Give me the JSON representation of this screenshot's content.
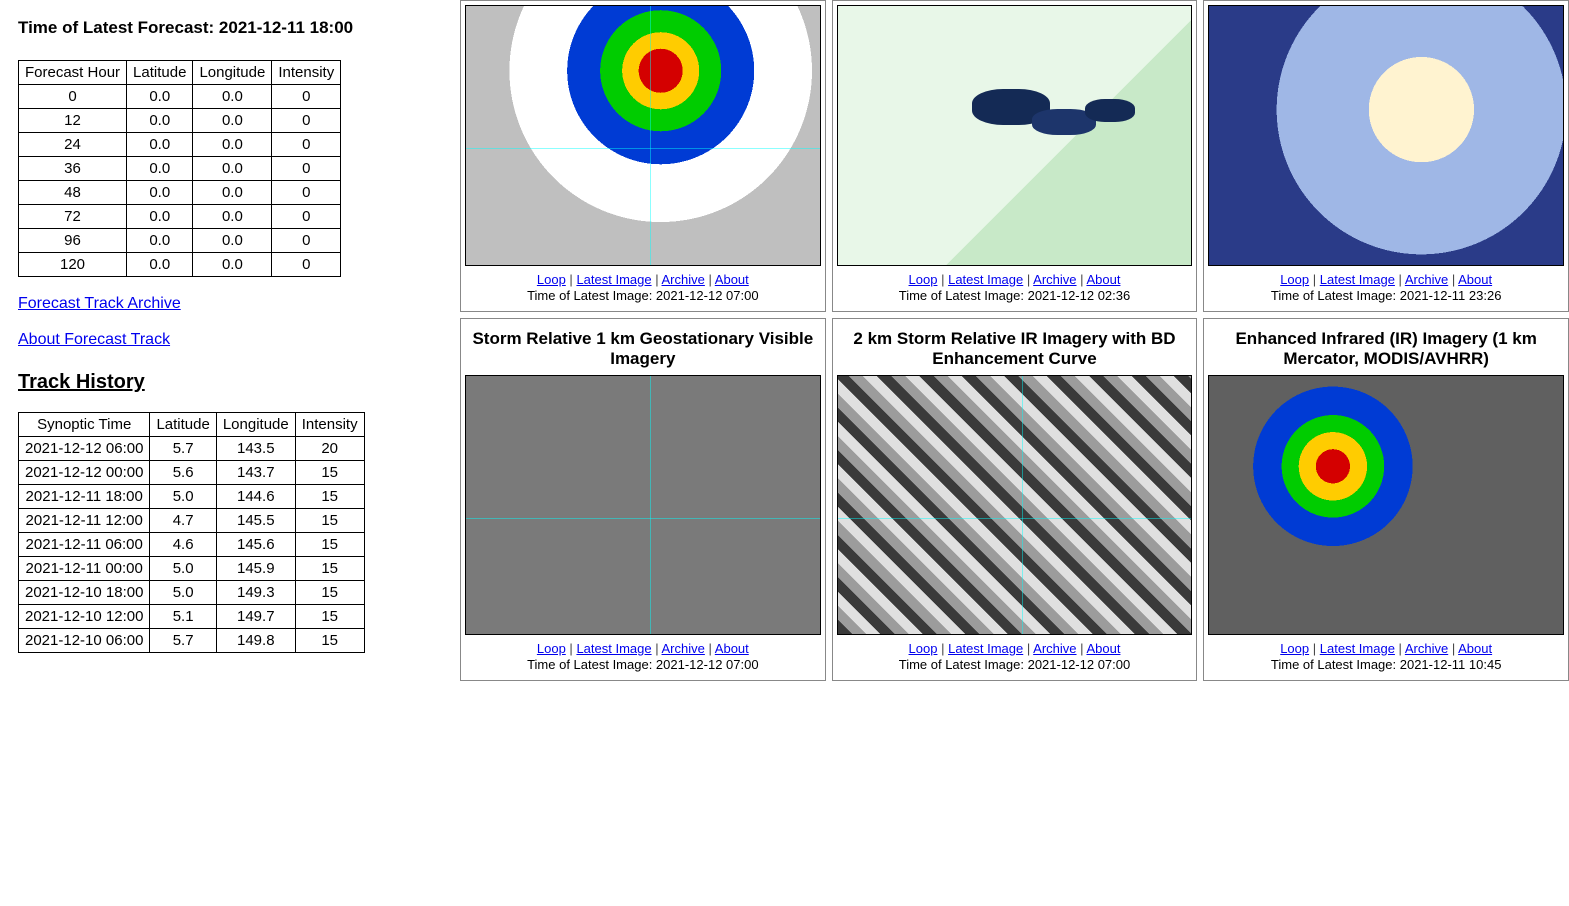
{
  "forecast": {
    "time_label": "Time of Latest Forecast: 2021-12-11 18:00",
    "columns": [
      "Forecast Hour",
      "Latitude",
      "Longitude",
      "Intensity"
    ],
    "rows": [
      [
        "0",
        "0.0",
        "0.0",
        "0"
      ],
      [
        "12",
        "0.0",
        "0.0",
        "0"
      ],
      [
        "24",
        "0.0",
        "0.0",
        "0"
      ],
      [
        "36",
        "0.0",
        "0.0",
        "0"
      ],
      [
        "48",
        "0.0",
        "0.0",
        "0"
      ],
      [
        "72",
        "0.0",
        "0.0",
        "0"
      ],
      [
        "96",
        "0.0",
        "0.0",
        "0"
      ],
      [
        "120",
        "0.0",
        "0.0",
        "0"
      ]
    ]
  },
  "links": {
    "archive": "Forecast Track Archive",
    "about": "About Forecast Track"
  },
  "track_history": {
    "heading": "Track History",
    "columns": [
      "Synoptic Time",
      "Latitude",
      "Longitude",
      "Intensity"
    ],
    "rows": [
      [
        "2021-12-12 06:00",
        "5.7",
        "143.5",
        "20"
      ],
      [
        "2021-12-12 00:00",
        "5.6",
        "143.7",
        "15"
      ],
      [
        "2021-12-11 18:00",
        "5.0",
        "144.6",
        "15"
      ],
      [
        "2021-12-11 12:00",
        "4.7",
        "145.5",
        "15"
      ],
      [
        "2021-12-11 06:00",
        "4.6",
        "145.6",
        "15"
      ],
      [
        "2021-12-11 00:00",
        "5.0",
        "145.9",
        "15"
      ],
      [
        "2021-12-10 18:00",
        "5.0",
        "149.3",
        "15"
      ],
      [
        "2021-12-10 12:00",
        "5.1",
        "149.7",
        "15"
      ],
      [
        "2021-12-10 06:00",
        "5.7",
        "149.8",
        "15"
      ]
    ]
  },
  "panel_links": {
    "loop": "Loop",
    "latest": "Latest Image",
    "archive": "Archive",
    "about": "About",
    "time_prefix": "Time of Latest Image: "
  },
  "panels": {
    "top": [
      {
        "title": "",
        "time": "2021-12-12 07:00",
        "bg": "bg-ir-enh crosshair"
      },
      {
        "title": "",
        "time": "2021-12-12 02:36",
        "bg": "bg-microwave"
      },
      {
        "title": "",
        "time": "2021-12-11 23:26",
        "bg": "bg-truecolor"
      }
    ],
    "bottom": [
      {
        "title": "Storm Relative 1 km Geostationary Visible Imagery",
        "time": "2021-12-12 07:00",
        "bg": "bg-visible crosshair"
      },
      {
        "title": "2 km Storm Relative IR Imagery with BD Enhancement Curve",
        "time": "2021-12-12 07:00",
        "bg": "bg-bd crosshair"
      },
      {
        "title": "Enhanced Infrared (IR) Imagery (1 km Mercator, MODIS/AVHRR)",
        "time": "2021-12-11 10:45",
        "bg": "bg-modis"
      }
    ]
  },
  "colors": {
    "link": "#0000ee",
    "border": "#000000",
    "panel_border": "#888888",
    "text": "#000000",
    "background": "#ffffff"
  }
}
